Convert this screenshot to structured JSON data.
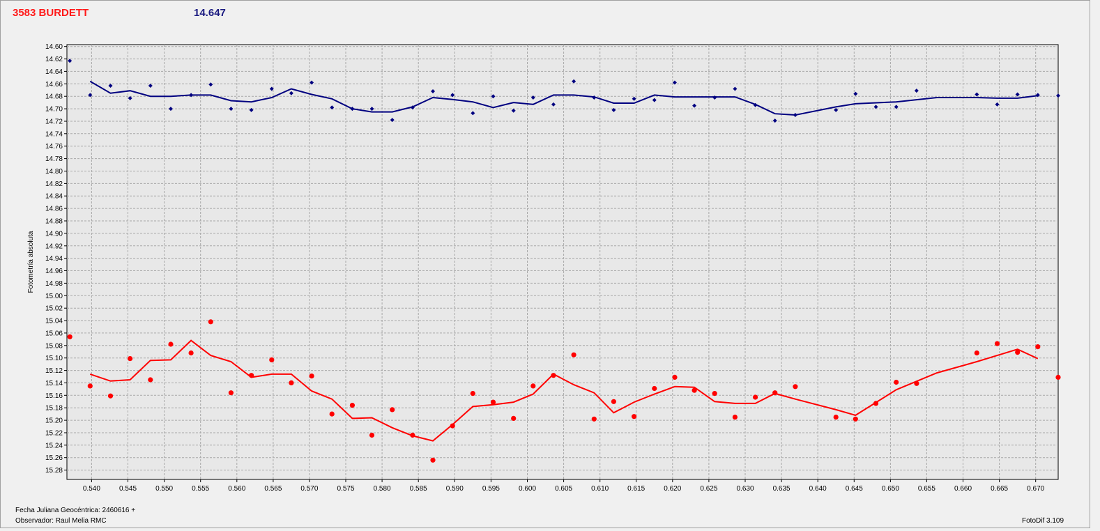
{
  "header": {
    "object_name": "3583 BURDETT",
    "comparison_value": "14.647"
  },
  "footer": {
    "jd_label": "Fecha Juliana Geocéntrica: 2460616 +",
    "observer_label": "Observador: Raul Melia RMC",
    "version_label": "FotoDif 3.109"
  },
  "colors": {
    "blue": "#000080",
    "red": "#ff0000",
    "plot_background": "#e8e8e8",
    "grid": "#a8a8a8"
  },
  "chart_data": {
    "type": "scatter",
    "ylabel": "Fotometría absoluta",
    "xlim": [
      0.5366,
      0.6731
    ],
    "ylim": [
      14.597,
      15.295
    ],
    "y_inverted": true,
    "grid": true,
    "x_ticks": [
      0.54,
      0.545,
      0.55,
      0.555,
      0.56,
      0.565,
      0.57,
      0.575,
      0.58,
      0.585,
      0.59,
      0.595,
      0.6,
      0.605,
      0.61,
      0.615,
      0.62,
      0.625,
      0.63,
      0.635,
      0.64,
      0.645,
      0.65,
      0.655,
      0.66,
      0.665,
      0.67
    ],
    "x_tick_labels": [
      "0.540",
      "0.545",
      "0.550",
      "0.555",
      "0.560",
      "0.565",
      "0.570",
      "0.575",
      "0.580",
      "0.585",
      "0.590",
      "0.595",
      "0.600",
      "0.605",
      "0.610",
      "0.615",
      "0.620",
      "0.625",
      "0.630",
      "0.635",
      "0.640",
      "0.645",
      "0.650",
      "0.655",
      "0.660",
      "0.665",
      "0.670"
    ],
    "y_ticks": [
      14.6,
      14.62,
      14.64,
      14.66,
      14.68,
      14.7,
      14.72,
      14.74,
      14.76,
      14.78,
      14.8,
      14.82,
      14.84,
      14.86,
      14.88,
      14.9,
      14.92,
      14.94,
      14.96,
      14.98,
      15.0,
      15.02,
      15.04,
      15.06,
      15.08,
      15.1,
      15.12,
      15.14,
      15.16,
      15.18,
      15.2,
      15.22,
      15.24,
      15.26,
      15.28
    ],
    "y_tick_labels": [
      "14.60",
      "14.62",
      "14.64",
      "14.66",
      "14.68",
      "14.70",
      "14.72",
      "14.74",
      "14.76",
      "14.78",
      "14.80",
      "14.82",
      "14.84",
      "14.86",
      "14.88",
      "14.90",
      "14.92",
      "14.94",
      "14.96",
      "14.98",
      "15.00",
      "15.02",
      "15.04",
      "15.06",
      "15.08",
      "15.10",
      "15.12",
      "15.14",
      "15.16",
      "15.18",
      "15.20",
      "15.22",
      "15.24",
      "15.26",
      "15.28"
    ],
    "series": [
      {
        "color": "#000080",
        "marker": "diamond",
        "points": [
          [
            0.537,
            14.623
          ],
          [
            0.5398,
            14.678
          ],
          [
            0.5426,
            14.663
          ],
          [
            0.5453,
            14.683
          ],
          [
            0.5481,
            14.663
          ],
          [
            0.5509,
            14.7
          ],
          [
            0.5537,
            14.678
          ],
          [
            0.5564,
            14.661
          ],
          [
            0.5592,
            14.7
          ],
          [
            0.562,
            14.702
          ],
          [
            0.5648,
            14.668
          ],
          [
            0.5675,
            14.675
          ],
          [
            0.5703,
            14.658
          ],
          [
            0.5731,
            14.698
          ],
          [
            0.5759,
            14.7
          ],
          [
            0.5786,
            14.7
          ],
          [
            0.5814,
            14.718
          ],
          [
            0.5842,
            14.698
          ],
          [
            0.587,
            14.672
          ],
          [
            0.5897,
            14.678
          ],
          [
            0.5925,
            14.707
          ],
          [
            0.5953,
            14.68
          ],
          [
            0.5981,
            14.703
          ],
          [
            0.6008,
            14.682
          ],
          [
            0.6036,
            14.693
          ],
          [
            0.6064,
            14.656
          ],
          [
            0.6092,
            14.682
          ],
          [
            0.6119,
            14.702
          ],
          [
            0.6147,
            14.684
          ],
          [
            0.6175,
            14.686
          ],
          [
            0.6203,
            14.658
          ],
          [
            0.623,
            14.695
          ],
          [
            0.6258,
            14.682
          ],
          [
            0.6286,
            14.668
          ],
          [
            0.6314,
            14.694
          ],
          [
            0.6341,
            14.719
          ],
          [
            0.6369,
            14.71
          ],
          [
            0.6425,
            14.702
          ],
          [
            0.6452,
            14.676
          ],
          [
            0.648,
            14.697
          ],
          [
            0.6508,
            14.697
          ],
          [
            0.6536,
            14.671
          ],
          [
            0.6619,
            14.677
          ],
          [
            0.6647,
            14.693
          ],
          [
            0.6675,
            14.677
          ],
          [
            0.6703,
            14.678
          ],
          [
            0.6731,
            14.679
          ]
        ],
        "trend": [
          [
            0.5398,
            14.656
          ],
          [
            0.5426,
            14.675
          ],
          [
            0.5453,
            14.671
          ],
          [
            0.5481,
            14.68
          ],
          [
            0.5509,
            14.68
          ],
          [
            0.5537,
            14.678
          ],
          [
            0.5564,
            14.678
          ],
          [
            0.5592,
            14.687
          ],
          [
            0.562,
            14.689
          ],
          [
            0.5648,
            14.682
          ],
          [
            0.5675,
            14.668
          ],
          [
            0.5703,
            14.677
          ],
          [
            0.5731,
            14.684
          ],
          [
            0.5759,
            14.7
          ],
          [
            0.5786,
            14.705
          ],
          [
            0.5814,
            14.705
          ],
          [
            0.5842,
            14.697
          ],
          [
            0.587,
            14.682
          ],
          [
            0.5897,
            14.685
          ],
          [
            0.5925,
            14.689
          ],
          [
            0.5953,
            14.698
          ],
          [
            0.5981,
            14.69
          ],
          [
            0.6008,
            14.693
          ],
          [
            0.6036,
            14.678
          ],
          [
            0.6064,
            14.678
          ],
          [
            0.6092,
            14.681
          ],
          [
            0.6119,
            14.691
          ],
          [
            0.6147,
            14.691
          ],
          [
            0.6175,
            14.678
          ],
          [
            0.6203,
            14.681
          ],
          [
            0.6258,
            14.681
          ],
          [
            0.6286,
            14.681
          ],
          [
            0.6314,
            14.693
          ],
          [
            0.6341,
            14.708
          ],
          [
            0.6369,
            14.71
          ],
          [
            0.6425,
            14.697
          ],
          [
            0.6452,
            14.692
          ],
          [
            0.6508,
            14.689
          ],
          [
            0.6564,
            14.682
          ],
          [
            0.6619,
            14.682
          ],
          [
            0.6647,
            14.683
          ],
          [
            0.6675,
            14.683
          ],
          [
            0.6703,
            14.679
          ]
        ]
      },
      {
        "color": "#ff0000",
        "marker": "circle",
        "points": [
          [
            0.537,
            15.066
          ],
          [
            0.5398,
            15.145
          ],
          [
            0.5426,
            15.161
          ],
          [
            0.5453,
            15.101
          ],
          [
            0.5481,
            15.135
          ],
          [
            0.5509,
            15.078
          ],
          [
            0.5537,
            15.092
          ],
          [
            0.5564,
            15.042
          ],
          [
            0.5592,
            15.156
          ],
          [
            0.562,
            15.128
          ],
          [
            0.5648,
            15.103
          ],
          [
            0.5675,
            15.14
          ],
          [
            0.5703,
            15.129
          ],
          [
            0.5731,
            15.19
          ],
          [
            0.5759,
            15.176
          ],
          [
            0.5786,
            15.224
          ],
          [
            0.5814,
            15.183
          ],
          [
            0.5842,
            15.224
          ],
          [
            0.587,
            15.264
          ],
          [
            0.5897,
            15.209
          ],
          [
            0.5925,
            15.157
          ],
          [
            0.5953,
            15.171
          ],
          [
            0.5981,
            15.197
          ],
          [
            0.6008,
            15.145
          ],
          [
            0.6036,
            15.128
          ],
          [
            0.6064,
            15.095
          ],
          [
            0.6092,
            15.198
          ],
          [
            0.6119,
            15.17
          ],
          [
            0.6147,
            15.194
          ],
          [
            0.6175,
            15.149
          ],
          [
            0.6203,
            15.131
          ],
          [
            0.623,
            15.152
          ],
          [
            0.6258,
            15.157
          ],
          [
            0.6286,
            15.195
          ],
          [
            0.6314,
            15.163
          ],
          [
            0.6341,
            15.156
          ],
          [
            0.6369,
            15.146
          ],
          [
            0.6425,
            15.195
          ],
          [
            0.6452,
            15.198
          ],
          [
            0.648,
            15.173
          ],
          [
            0.6508,
            15.139
          ],
          [
            0.6536,
            15.141
          ],
          [
            0.6619,
            15.092
          ],
          [
            0.6647,
            15.077
          ],
          [
            0.6675,
            15.091
          ],
          [
            0.6703,
            15.082
          ],
          [
            0.6731,
            15.131
          ]
        ],
        "trend": [
          [
            0.5398,
            15.126
          ],
          [
            0.5426,
            15.137
          ],
          [
            0.5453,
            15.135
          ],
          [
            0.5481,
            15.104
          ],
          [
            0.5509,
            15.103
          ],
          [
            0.5537,
            15.072
          ],
          [
            0.5564,
            15.096
          ],
          [
            0.5592,
            15.106
          ],
          [
            0.562,
            15.131
          ],
          [
            0.5648,
            15.126
          ],
          [
            0.5675,
            15.126
          ],
          [
            0.5703,
            15.153
          ],
          [
            0.5731,
            15.166
          ],
          [
            0.5759,
            15.197
          ],
          [
            0.5786,
            15.196
          ],
          [
            0.5814,
            15.212
          ],
          [
            0.5842,
            15.225
          ],
          [
            0.587,
            15.233
          ],
          [
            0.5897,
            15.207
          ],
          [
            0.5925,
            15.178
          ],
          [
            0.5953,
            15.175
          ],
          [
            0.5981,
            15.171
          ],
          [
            0.6008,
            15.158
          ],
          [
            0.6036,
            15.126
          ],
          [
            0.6064,
            15.143
          ],
          [
            0.6092,
            15.156
          ],
          [
            0.6119,
            15.188
          ],
          [
            0.6147,
            15.171
          ],
          [
            0.6175,
            15.158
          ],
          [
            0.6203,
            15.146
          ],
          [
            0.623,
            15.147
          ],
          [
            0.6258,
            15.17
          ],
          [
            0.6286,
            15.173
          ],
          [
            0.6314,
            15.173
          ],
          [
            0.6341,
            15.157
          ],
          [
            0.6369,
            15.166
          ],
          [
            0.6425,
            15.183
          ],
          [
            0.6452,
            15.192
          ],
          [
            0.6508,
            15.151
          ],
          [
            0.6564,
            15.124
          ],
          [
            0.6619,
            15.106
          ],
          [
            0.6647,
            15.096
          ],
          [
            0.6675,
            15.086
          ],
          [
            0.6703,
            15.101
          ]
        ]
      }
    ]
  }
}
